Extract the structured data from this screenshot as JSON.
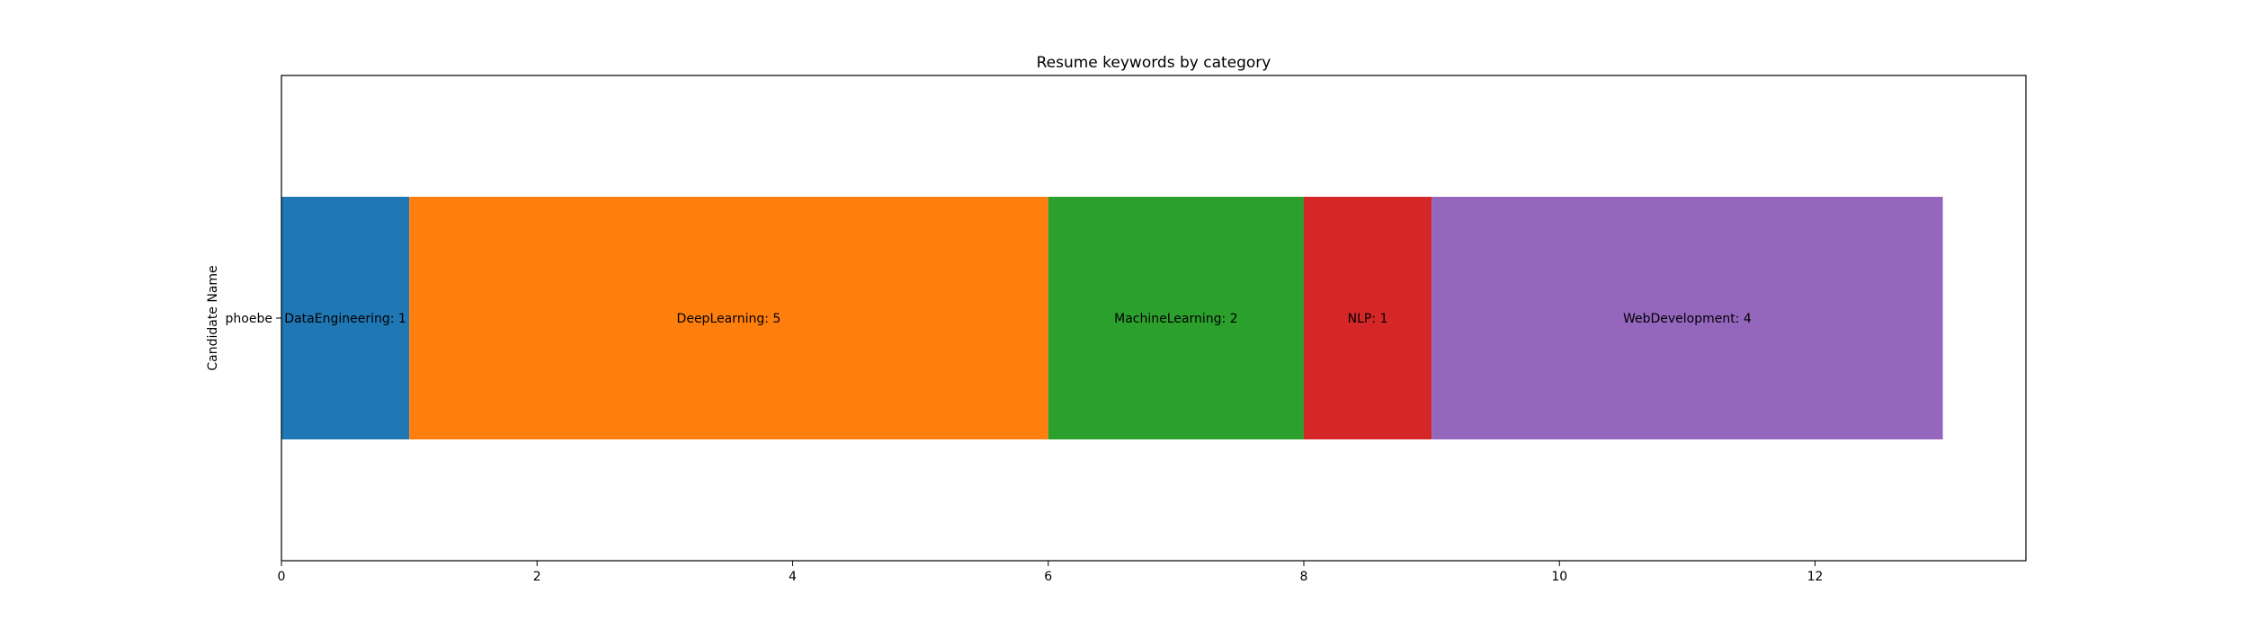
{
  "chart_data": {
    "type": "bar",
    "orientation": "horizontal",
    "stacked": true,
    "title": "Resume keywords by category",
    "xlabel": "",
    "ylabel": "Candidate Name",
    "categories": [
      "phoebe"
    ],
    "series": [
      {
        "name": "DataEngineering",
        "values": [
          1
        ],
        "color": "#1f77b4"
      },
      {
        "name": "DeepLearning",
        "values": [
          5
        ],
        "color": "#ff7f0e"
      },
      {
        "name": "MachineLearning",
        "values": [
          2
        ],
        "color": "#2ca02c"
      },
      {
        "name": "NLP",
        "values": [
          1
        ],
        "color": "#d62728"
      },
      {
        "name": "WebDevelopment",
        "values": [
          4
        ],
        "color": "#9467bd"
      }
    ],
    "bar_labels": [
      "DataEngineering: 1",
      "DeepLearning: 5",
      "MachineLearning: 2",
      "NLP: 1",
      "WebDevelopment: 4"
    ],
    "xticks": [
      "0",
      "2",
      "4",
      "6",
      "8",
      "10",
      "12"
    ],
    "xlim": [
      0,
      13.65
    ],
    "grid": false,
    "legend": "none"
  }
}
